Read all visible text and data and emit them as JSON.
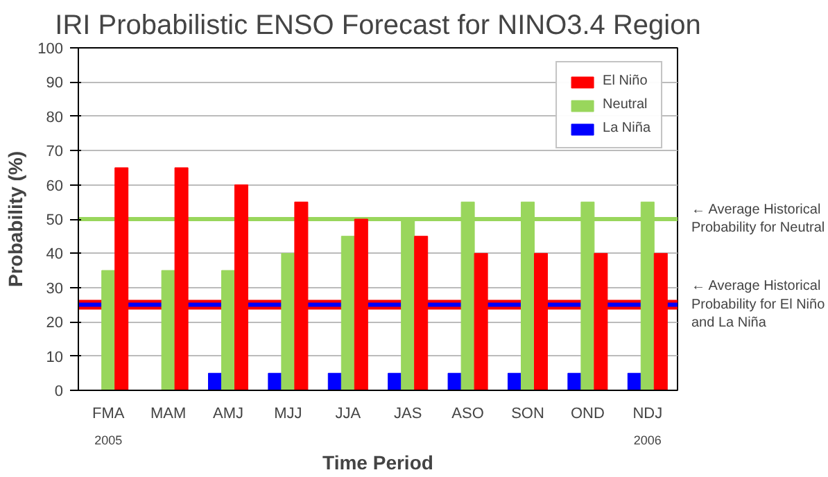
{
  "chart_data": {
    "type": "bar",
    "title": "IRI Probabilistic ENSO Forecast for NINO3.4 Region",
    "xlabel": "Time Period",
    "ylabel": "Probability (%)",
    "categories": [
      "FMA",
      "MAM",
      "AMJ",
      "MJJ",
      "JJA",
      "JAS",
      "ASO",
      "SON",
      "OND",
      "NDJ"
    ],
    "series": [
      {
        "name": "La Niña",
        "color": "#0000ff",
        "values": [
          0,
          0,
          5,
          5,
          5,
          5,
          5,
          5,
          5,
          5
        ]
      },
      {
        "name": "Neutral",
        "color": "#99d65c",
        "values": [
          35,
          35,
          35,
          40,
          45,
          50,
          55,
          55,
          55,
          55
        ]
      },
      {
        "name": "El Niño",
        "color": "#ff0000",
        "values": [
          65,
          65,
          60,
          55,
          50,
          45,
          40,
          40,
          40,
          40
        ]
      }
    ],
    "ylim": [
      0,
      100
    ],
    "yticks": [
      0,
      10,
      20,
      30,
      40,
      50,
      60,
      70,
      80,
      90,
      100
    ],
    "grid": "y",
    "legend": "top right",
    "ref_lines": [
      {
        "axis": "y",
        "value": 50,
        "label": "← Average Historical\nProbability for Neutral",
        "color": "#99d65c"
      },
      {
        "axis": "y",
        "value": 25,
        "label": null,
        "color": "#ff0000"
      },
      {
        "axis": "y",
        "value": 25,
        "label": "← Average Historical\nProbability for El Niño\nand La Niña",
        "color": "#0000ff"
      }
    ],
    "annotations": [
      "2005",
      "2006"
    ]
  }
}
